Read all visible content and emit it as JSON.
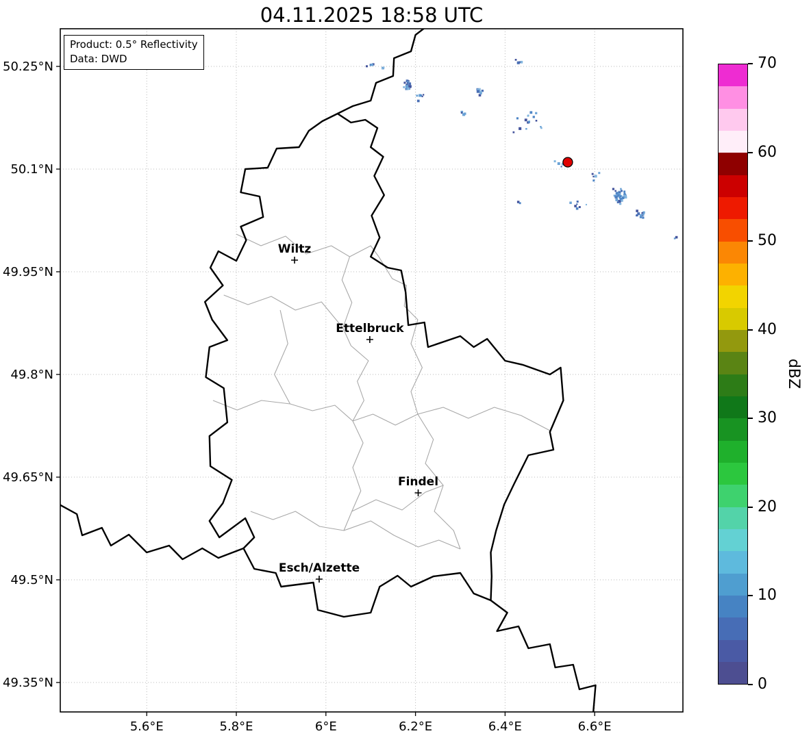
{
  "title": "04.11.2025 18:58 UTC",
  "info_box": {
    "line1": "Product: 0.5° Reflectivity",
    "line2": "Data: DWD"
  },
  "colorbar": {
    "label": "dBZ",
    "vmin": 0,
    "vmax": 70,
    "step": 2.5,
    "ticks": [
      0,
      10,
      20,
      30,
      40,
      50,
      60,
      70
    ],
    "colors": [
      "#4d4e91",
      "#4a5aa5",
      "#476db6",
      "#4683c3",
      "#4f9ed0",
      "#5ebadd",
      "#63d1d3",
      "#53d3a9",
      "#3ed26e",
      "#2cc73e",
      "#1fb02c",
      "#189322",
      "#107819",
      "#2d7c17",
      "#5a8414",
      "#93990e",
      "#d8ca00",
      "#f2d400",
      "#fdb100",
      "#fb8704",
      "#f84e00",
      "#ee1a00",
      "#cc0000",
      "#8f0000",
      "#ffeef9",
      "#ffc9ee",
      "#ff8fe3",
      "#ee2cd2"
    ]
  },
  "chart_data": {
    "type": "map",
    "title": "04.11.2025 18:58 UTC",
    "extent": {
      "lon_min": 5.407,
      "lon_max": 6.797,
      "lat_min": 49.307,
      "lat_max": 50.305
    },
    "x_ticks": [
      {
        "value": 5.6,
        "label": "5.6°E"
      },
      {
        "value": 5.8,
        "label": "5.8°E"
      },
      {
        "value": 6.0,
        "label": "6°E"
      },
      {
        "value": 6.2,
        "label": "6.2°E"
      },
      {
        "value": 6.4,
        "label": "6.4°E"
      },
      {
        "value": 6.6,
        "label": "6.6°E"
      }
    ],
    "y_ticks": [
      {
        "value": 50.25,
        "label": "50.25°N"
      },
      {
        "value": 50.1,
        "label": "50.1°N"
      },
      {
        "value": 49.95,
        "label": "49.95°N"
      },
      {
        "value": 49.8,
        "label": "49.8°N"
      },
      {
        "value": 49.65,
        "label": "49.65°N"
      },
      {
        "value": 49.5,
        "label": "49.5°N"
      },
      {
        "value": 49.35,
        "label": "49.35°N"
      }
    ],
    "cities": [
      {
        "name": "Wiltz",
        "lon": 5.93,
        "lat": 49.967
      },
      {
        "name": "Ettelbruck",
        "lon": 6.098,
        "lat": 49.851
      },
      {
        "name": "Findel",
        "lon": 6.206,
        "lat": 49.627
      },
      {
        "name": "Esch/Alzette",
        "lon": 5.985,
        "lat": 49.501
      }
    ],
    "radar_marker": {
      "lon": 6.54,
      "lat": 50.11,
      "color": "#e00000"
    },
    "borders": {
      "country": [
        [
          6.026,
          50.181
        ],
        [
          6.056,
          50.168
        ],
        [
          6.088,
          50.172
        ],
        [
          6.115,
          50.16
        ],
        [
          6.1,
          50.132
        ],
        [
          6.128,
          50.118
        ],
        [
          6.108,
          50.09
        ],
        [
          6.13,
          50.062
        ],
        [
          6.102,
          50.032
        ],
        [
          6.12,
          50.0
        ],
        [
          6.1,
          49.972
        ],
        [
          6.138,
          49.956
        ],
        [
          6.168,
          49.952
        ],
        [
          6.178,
          49.92
        ],
        [
          6.184,
          49.872
        ],
        [
          6.22,
          49.876
        ],
        [
          6.228,
          49.84
        ],
        [
          6.3,
          49.856
        ],
        [
          6.33,
          49.84
        ],
        [
          6.36,
          49.852
        ],
        [
          6.4,
          49.82
        ],
        [
          6.44,
          49.814
        ],
        [
          6.5,
          49.8
        ],
        [
          6.524,
          49.81
        ],
        [
          6.53,
          49.762
        ],
        [
          6.5,
          49.716
        ],
        [
          6.508,
          49.69
        ],
        [
          6.452,
          49.682
        ],
        [
          6.42,
          49.64
        ],
        [
          6.398,
          49.61
        ],
        [
          6.38,
          49.572
        ],
        [
          6.368,
          49.54
        ],
        [
          6.37,
          49.505
        ],
        [
          6.368,
          49.47
        ],
        [
          6.33,
          49.48
        ],
        [
          6.3,
          49.51
        ],
        [
          6.24,
          49.505
        ],
        [
          6.19,
          49.49
        ],
        [
          6.16,
          49.506
        ],
        [
          6.12,
          49.49
        ],
        [
          6.1,
          49.452
        ],
        [
          6.04,
          49.446
        ],
        [
          5.982,
          49.456
        ],
        [
          5.972,
          49.496
        ],
        [
          5.9,
          49.49
        ],
        [
          5.888,
          49.51
        ],
        [
          5.84,
          49.516
        ],
        [
          5.816,
          49.546
        ],
        [
          5.84,
          49.562
        ],
        [
          5.82,
          49.59
        ],
        [
          5.762,
          49.562
        ],
        [
          5.74,
          49.586
        ],
        [
          5.77,
          49.612
        ],
        [
          5.79,
          49.646
        ],
        [
          5.742,
          49.666
        ],
        [
          5.74,
          49.71
        ],
        [
          5.78,
          49.73
        ],
        [
          5.772,
          49.78
        ],
        [
          5.732,
          49.796
        ],
        [
          5.74,
          49.84
        ],
        [
          5.78,
          49.85
        ],
        [
          5.746,
          49.88
        ],
        [
          5.73,
          49.906
        ],
        [
          5.77,
          49.93
        ],
        [
          5.742,
          49.956
        ],
        [
          5.76,
          49.98
        ],
        [
          5.8,
          49.966
        ],
        [
          5.822,
          49.996
        ],
        [
          5.81,
          50.016
        ],
        [
          5.86,
          50.03
        ],
        [
          5.852,
          50.06
        ],
        [
          5.81,
          50.066
        ],
        [
          5.82,
          50.1
        ],
        [
          5.87,
          50.102
        ],
        [
          5.89,
          50.13
        ],
        [
          5.94,
          50.132
        ],
        [
          5.962,
          50.156
        ],
        [
          5.992,
          50.17
        ],
        [
          6.026,
          50.181
        ]
      ],
      "neighbor": [
        [
          [
            6.026,
            50.181
          ],
          [
            6.06,
            50.192
          ],
          [
            6.1,
            50.2
          ],
          [
            6.112,
            50.226
          ],
          [
            6.15,
            50.236
          ],
          [
            6.152,
            50.262
          ],
          [
            6.19,
            50.272
          ],
          [
            6.2,
            50.296
          ],
          [
            6.228,
            50.31
          ]
        ],
        [
          [
            6.368,
            49.47
          ],
          [
            6.405,
            49.452
          ],
          [
            6.382,
            49.425
          ],
          [
            6.43,
            49.432
          ],
          [
            6.452,
            49.4
          ],
          [
            6.5,
            49.406
          ],
          [
            6.512,
            49.372
          ],
          [
            6.552,
            49.376
          ],
          [
            6.566,
            49.34
          ],
          [
            6.602,
            49.346
          ],
          [
            6.596,
            49.3
          ]
        ],
        [
          [
            5.405,
            49.61
          ],
          [
            5.444,
            49.596
          ],
          [
            5.456,
            49.565
          ],
          [
            5.5,
            49.576
          ],
          [
            5.52,
            49.55
          ],
          [
            5.56,
            49.566
          ],
          [
            5.6,
            49.54
          ],
          [
            5.65,
            49.55
          ],
          [
            5.68,
            49.53
          ],
          [
            5.724,
            49.546
          ],
          [
            5.76,
            49.532
          ],
          [
            5.816,
            49.546
          ]
        ]
      ],
      "internal": [
        [
          [
            5.8,
            50.005
          ],
          [
            5.855,
            49.988
          ],
          [
            5.91,
            50.002
          ],
          [
            5.956,
            49.976
          ],
          [
            6.012,
            49.988
          ],
          [
            6.053,
            49.972
          ],
          [
            6.1,
            49.988
          ],
          [
            6.118,
            49.972
          ]
        ],
        [
          [
            6.053,
            49.972
          ],
          [
            6.036,
            49.938
          ],
          [
            6.058,
            49.905
          ],
          [
            6.038,
            49.868
          ],
          [
            6.056,
            49.842
          ]
        ],
        [
          [
            5.772,
            49.916
          ],
          [
            5.826,
            49.902
          ],
          [
            5.878,
            49.914
          ],
          [
            5.932,
            49.894
          ],
          [
            5.99,
            49.906
          ],
          [
            6.038,
            49.868
          ]
        ],
        [
          [
            5.898,
            49.894
          ],
          [
            5.915,
            49.845
          ],
          [
            5.885,
            49.8
          ],
          [
            5.92,
            49.757
          ]
        ],
        [
          [
            5.748,
            49.762
          ],
          [
            5.802,
            49.748
          ],
          [
            5.856,
            49.762
          ],
          [
            5.92,
            49.757
          ],
          [
            5.97,
            49.747
          ],
          [
            6.02,
            49.755
          ],
          [
            6.06,
            49.732
          ],
          [
            6.105,
            49.742
          ],
          [
            6.155,
            49.726
          ],
          [
            6.205,
            49.742
          ]
        ],
        [
          [
            6.056,
            49.842
          ],
          [
            6.095,
            49.82
          ],
          [
            6.07,
            49.79
          ],
          [
            6.085,
            49.762
          ],
          [
            6.06,
            49.732
          ]
        ],
        [
          [
            6.06,
            49.732
          ],
          [
            6.083,
            49.7
          ],
          [
            6.06,
            49.664
          ],
          [
            6.078,
            49.63
          ],
          [
            6.058,
            49.6
          ],
          [
            6.04,
            49.572
          ]
        ],
        [
          [
            6.118,
            49.972
          ],
          [
            6.148,
            49.94
          ],
          [
            6.18,
            49.93
          ],
          [
            6.175,
            49.9
          ],
          [
            6.205,
            49.88
          ],
          [
            6.19,
            49.845
          ],
          [
            6.215,
            49.81
          ],
          [
            6.19,
            49.775
          ],
          [
            6.205,
            49.742
          ]
        ],
        [
          [
            6.205,
            49.742
          ],
          [
            6.262,
            49.752
          ],
          [
            6.318,
            49.736
          ],
          [
            6.376,
            49.752
          ],
          [
            6.436,
            49.74
          ],
          [
            6.5,
            49.718
          ]
        ],
        [
          [
            6.205,
            49.742
          ],
          [
            6.24,
            49.705
          ],
          [
            6.222,
            49.67
          ],
          [
            6.262,
            49.638
          ],
          [
            6.242,
            49.6
          ],
          [
            6.285,
            49.572
          ],
          [
            6.3,
            49.545
          ]
        ],
        [
          [
            5.832,
            49.6
          ],
          [
            5.882,
            49.588
          ],
          [
            5.932,
            49.6
          ],
          [
            5.986,
            49.578
          ],
          [
            6.04,
            49.572
          ],
          [
            6.1,
            49.586
          ],
          [
            6.152,
            49.565
          ],
          [
            6.206,
            49.548
          ],
          [
            6.252,
            49.558
          ],
          [
            6.3,
            49.545
          ]
        ],
        [
          [
            6.058,
            49.6
          ],
          [
            6.112,
            49.617
          ],
          [
            6.17,
            49.602
          ],
          [
            6.222,
            49.628
          ],
          [
            6.262,
            49.638
          ]
        ]
      ]
    },
    "echo_palette": [
      "#44549c",
      "#4a6fb5",
      "#4f86c6",
      "#6ba3d6",
      "#82b5de"
    ],
    "echo_clusters": [
      {
        "lon": 6.096,
        "lat": 50.252,
        "n": 5,
        "sx": 0.012,
        "sy": 0.003
      },
      {
        "lon": 6.127,
        "lat": 50.249,
        "n": 3,
        "sx": 0.006,
        "sy": 0.003
      },
      {
        "lon": 6.183,
        "lat": 50.222,
        "n": 32,
        "sx": 0.011,
        "sy": 0.009
      },
      {
        "lon": 6.21,
        "lat": 50.206,
        "n": 6,
        "sx": 0.016,
        "sy": 0.008
      },
      {
        "lon": 6.343,
        "lat": 50.214,
        "n": 9,
        "sx": 0.011,
        "sy": 0.008
      },
      {
        "lon": 6.308,
        "lat": 50.182,
        "n": 4,
        "sx": 0.009,
        "sy": 0.007
      },
      {
        "lon": 6.427,
        "lat": 50.256,
        "n": 4,
        "sx": 0.02,
        "sy": 0.006
      },
      {
        "lon": 6.45,
        "lat": 50.168,
        "n": 16,
        "sx": 0.06,
        "sy": 0.03
      },
      {
        "lon": 6.52,
        "lat": 50.112,
        "n": 6,
        "sx": 0.03,
        "sy": 0.015
      },
      {
        "lon": 6.555,
        "lat": 50.048,
        "n": 7,
        "sx": 0.04,
        "sy": 0.012
      },
      {
        "lon": 6.657,
        "lat": 50.06,
        "n": 48,
        "sx": 0.022,
        "sy": 0.017
      },
      {
        "lon": 6.702,
        "lat": 50.034,
        "n": 12,
        "sx": 0.02,
        "sy": 0.01
      },
      {
        "lon": 6.43,
        "lat": 50.05,
        "n": 2,
        "sx": 0.007,
        "sy": 0.005
      },
      {
        "lon": 6.782,
        "lat": 50.0,
        "n": 2,
        "sx": 0.005,
        "sy": 0.004
      },
      {
        "lon": 6.6,
        "lat": 50.088,
        "n": 5,
        "sx": 0.02,
        "sy": 0.012
      }
    ]
  }
}
